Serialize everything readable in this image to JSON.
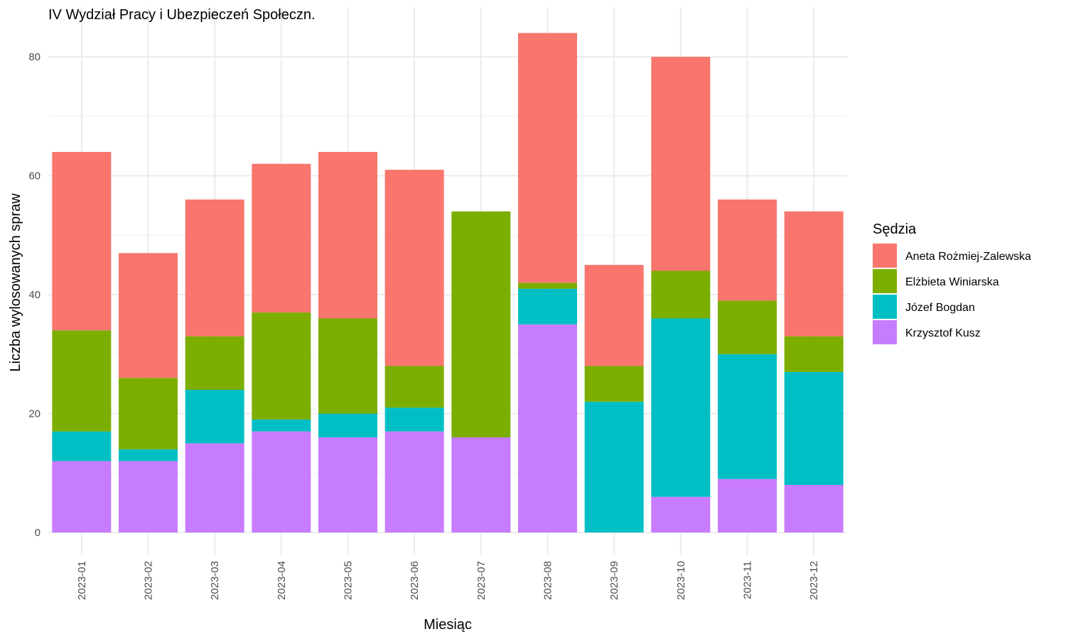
{
  "chart_data": {
    "type": "bar",
    "stacked": true,
    "title": "IV Wydział Pracy i Ubezpieczeń Społeczn.",
    "xlabel": "Miesiąc",
    "ylabel": "Liczba wylosowanych spraw",
    "ylim": [
      0,
      84
    ],
    "yticks": [
      0,
      20,
      40,
      60,
      80
    ],
    "grid": true,
    "legend": {
      "title": "Sędzia",
      "position": "right"
    },
    "categories": [
      "2023-01",
      "2023-02",
      "2023-03",
      "2023-04",
      "2023-05",
      "2023-06",
      "2023-07",
      "2023-08",
      "2023-09",
      "2023-10",
      "2023-11",
      "2023-12"
    ],
    "series": [
      {
        "name": "Aneta Rożmiej-Zalewska",
        "color": "#F8766D",
        "values": [
          30,
          21,
          23,
          25,
          28,
          33,
          0,
          42,
          17,
          36,
          17,
          21
        ]
      },
      {
        "name": "Elżbieta Winiarska",
        "color": "#7CAE00",
        "values": [
          17,
          12,
          9,
          18,
          16,
          7,
          38,
          1,
          6,
          8,
          9,
          6
        ]
      },
      {
        "name": "Józef Bogdan",
        "color": "#00BFC4",
        "values": [
          5,
          2,
          9,
          2,
          4,
          4,
          0,
          6,
          22,
          30,
          21,
          19
        ]
      },
      {
        "name": "Krzysztof Kusz",
        "color": "#C77CFF",
        "values": [
          12,
          12,
          15,
          17,
          16,
          17,
          16,
          35,
          0,
          6,
          9,
          8
        ]
      }
    ],
    "stack_order_bottom_to_top": [
      "Krzysztof Kusz",
      "Józef Bogdan",
      "Elżbieta Winiarska",
      "Aneta Rożmiej-Zalewska"
    ]
  }
}
